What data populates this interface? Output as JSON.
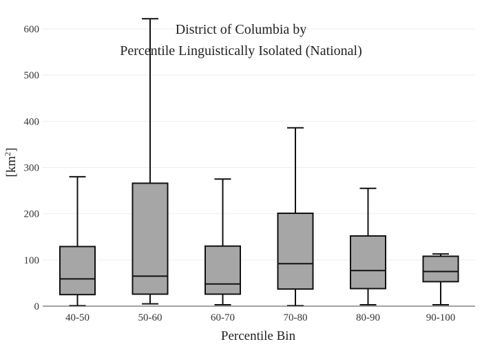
{
  "chart_data": {
    "type": "box",
    "title_lines": [
      "District of Columbia  by",
      "Percentile Linguistically Isolated (National)"
    ],
    "xlabel": "Percentile Bin",
    "ylabel": "[km",
    "ylabel_sup": "2",
    "ylabel_close": "]",
    "ylim": [
      0,
      630
    ],
    "yticks": [
      0,
      100,
      200,
      300,
      400,
      500,
      600
    ],
    "grid": true,
    "categories": [
      "40-50",
      "50-60",
      "60-70",
      "70-80",
      "80-90",
      "90-100"
    ],
    "boxes": [
      {
        "min": 1,
        "q1": 25,
        "median": 59,
        "q3": 129,
        "max": 280
      },
      {
        "min": 5,
        "q1": 26,
        "median": 65,
        "q3": 266,
        "max": 622
      },
      {
        "min": 3,
        "q1": 26,
        "median": 48,
        "q3": 130,
        "max": 275
      },
      {
        "min": 1,
        "q1": 37,
        "median": 92,
        "q3": 201,
        "max": 386
      },
      {
        "min": 3,
        "q1": 38,
        "median": 77,
        "q3": 152,
        "max": 255
      },
      {
        "min": 3,
        "q1": 53,
        "median": 75,
        "q3": 108,
        "max": 113
      }
    ],
    "box_fill": "#a6a6a6",
    "line_color": "#111111"
  }
}
